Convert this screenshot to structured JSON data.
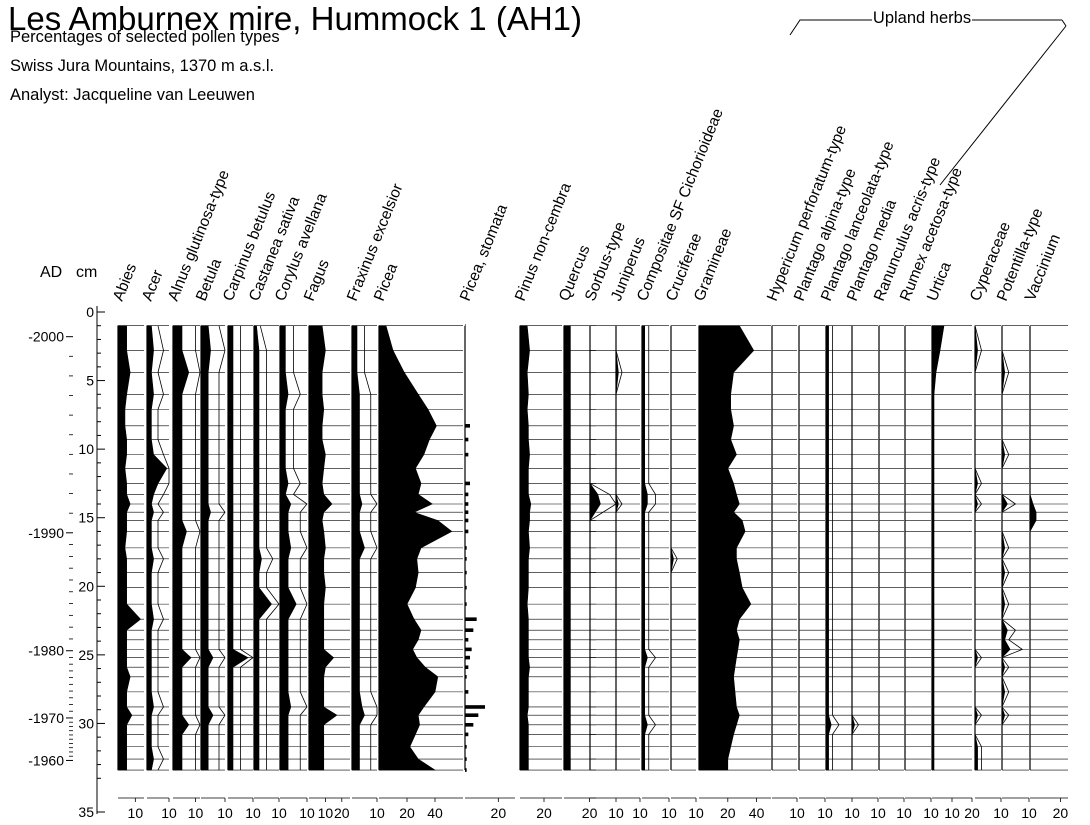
{
  "chart_data": {
    "type": "area",
    "title": "Les Amburnex mire, Hummock 1 (AH1)",
    "subtitle_lines": [
      "Percentages of selected pollen types",
      "Swiss Jura Mountains, 1370 m a.s.l.",
      "Analyst: Jacqueline van Leeuwen"
    ],
    "group_label": "Upland herbs",
    "axis_labels": {
      "age": "AD",
      "depth": "cm"
    },
    "depth_range": [
      0,
      35
    ],
    "depth_ticks": [
      {
        "depth": 0,
        "label": "0"
      },
      {
        "depth": 5,
        "label": "5"
      },
      {
        "depth": 10,
        "label": "10"
      },
      {
        "depth": 15,
        "label": "15"
      },
      {
        "depth": 20,
        "label": "20"
      },
      {
        "depth": 25,
        "label": "25"
      },
      {
        "depth": 30,
        "label": "30"
      },
      {
        "depth": 35,
        "label": "35"
      }
    ],
    "age_ticks": [
      {
        "depth": 1.8,
        "label": "-2000"
      },
      {
        "depth": 16.1,
        "label": "-1990"
      },
      {
        "depth": 24.7,
        "label": "-1980"
      },
      {
        "depth": 29.6,
        "label": "-1970"
      },
      {
        "depth": 32.7,
        "label": "-1960"
      }
    ],
    "depths": [
      1.0,
      2.8,
      4.4,
      6.0,
      7.1,
      8.3,
      9.3,
      10.4,
      11.4,
      12.5,
      13.3,
      14.0,
      14.6,
      15.2,
      16.0,
      17.2,
      18.0,
      19.0,
      20.1,
      21.3,
      22.4,
      23.2,
      23.9,
      24.6,
      25.2,
      25.9,
      26.6,
      27.7,
      28.8,
      29.4,
      30.1,
      30.8,
      31.7,
      32.6,
      33.4
    ],
    "series": [
      {
        "name": "Abies",
        "max": 15,
        "tick_labels": [
          "10"
        ],
        "values": [
          5,
          5,
          7,
          5,
          4,
          4,
          5,
          5,
          4,
          5,
          5,
          7,
          5,
          5,
          5,
          4,
          5,
          5,
          5,
          5,
          13,
          5,
          5,
          5,
          5,
          5,
          7,
          5,
          5,
          8,
          5,
          5,
          5,
          5,
          5
        ]
      },
      {
        "name": "Acer",
        "max": 10,
        "tick_labels": [
          "10"
        ],
        "values": [
          2,
          3,
          2,
          3,
          2,
          2,
          2,
          3,
          9,
          5,
          3,
          2,
          3,
          2,
          2,
          2,
          3,
          2,
          2,
          2,
          3,
          2,
          2,
          2,
          2,
          2,
          2,
          2,
          3,
          2,
          2,
          2,
          2,
          3,
          2
        ]
      },
      {
        "name": "Alnus glutinosa-type",
        "max": 12,
        "tick_labels": [
          "10"
        ],
        "values": [
          4,
          4,
          7,
          4,
          4,
          4,
          4,
          4,
          4,
          4,
          4,
          4,
          4,
          4,
          6,
          4,
          4,
          4,
          4,
          4,
          4,
          4,
          4,
          4,
          8,
          4,
          4,
          4,
          4,
          4,
          7,
          4,
          4,
          4,
          4
        ]
      },
      {
        "name": "Betula",
        "max": 10,
        "tick_labels": [
          "10"
        ],
        "values": [
          3,
          4,
          3,
          3,
          3,
          3,
          3,
          3,
          3,
          3,
          3,
          3,
          4,
          3,
          3,
          3,
          3,
          3,
          3,
          3,
          3,
          3,
          3,
          3,
          5,
          3,
          3,
          3,
          3,
          5,
          3,
          3,
          3,
          3,
          3
        ]
      },
      {
        "name": "Carpinus betulus",
        "max": 10,
        "tick_labels": [
          "10"
        ],
        "values": [
          2,
          2,
          2,
          2,
          2,
          2,
          2,
          2,
          2,
          2,
          2,
          2,
          2,
          2,
          2,
          2,
          2,
          2,
          2,
          2,
          2,
          2,
          2,
          2,
          8,
          2,
          2,
          2,
          2,
          2,
          2,
          2,
          2,
          2,
          2
        ]
      },
      {
        "name": "Castanea sativa",
        "max": 10,
        "tick_labels": [
          "10"
        ],
        "values": [
          1,
          2,
          2,
          2,
          2,
          2,
          2,
          2,
          2,
          2,
          2,
          2,
          2,
          2,
          2,
          2,
          3,
          2,
          2,
          7,
          2,
          2,
          2,
          2,
          2,
          2,
          2,
          2,
          2,
          2,
          2,
          2,
          2,
          2,
          2
        ]
      },
      {
        "name": "Corylus avellana",
        "max": 10,
        "tick_labels": [
          "10"
        ],
        "values": [
          2,
          2,
          2,
          3,
          2,
          2,
          2,
          2,
          2,
          3,
          2,
          4,
          3,
          3,
          3,
          4,
          3,
          3,
          3,
          6,
          3,
          3,
          3,
          3,
          3,
          3,
          3,
          3,
          4,
          3,
          3,
          3,
          3,
          3,
          3
        ]
      },
      {
        "name": "Fagus",
        "max": 25,
        "tick_labels": [
          "10",
          "20"
        ],
        "values": [
          8,
          10,
          8,
          8,
          9,
          8,
          8,
          10,
          9,
          8,
          9,
          14,
          9,
          8,
          9,
          10,
          9,
          9,
          10,
          9,
          9,
          9,
          9,
          9,
          15,
          10,
          9,
          9,
          9,
          17,
          9,
          9,
          9,
          9,
          9
        ]
      },
      {
        "name": "Fraxinus excelsior",
        "max": 10,
        "tick_labels": [
          "10"
        ],
        "values": [
          2,
          2,
          2,
          3,
          3,
          3,
          3,
          3,
          3,
          3,
          3,
          4,
          3,
          3,
          3,
          5,
          3,
          3,
          3,
          3,
          3,
          3,
          3,
          3,
          3,
          3,
          3,
          3,
          4,
          5,
          3,
          3,
          3,
          3,
          3
        ]
      },
      {
        "name": "Picea",
        "max": 60,
        "tick_labels": [
          "20",
          "40"
        ],
        "values": [
          5,
          10,
          18,
          28,
          35,
          41,
          36,
          32,
          26,
          30,
          28,
          38,
          25,
          42,
          52,
          30,
          27,
          28,
          26,
          20,
          25,
          30,
          28,
          24,
          27,
          33,
          42,
          40,
          32,
          28,
          29,
          26,
          22,
          28,
          40
        ]
      },
      {
        "name": "Picea, stomata",
        "max": 30,
        "tick_labels": [
          "20"
        ],
        "bars": true,
        "values": [
          0,
          0,
          0,
          0,
          0,
          3,
          2,
          2,
          0,
          3,
          2,
          2,
          2,
          2,
          2,
          1,
          1,
          1,
          1,
          1,
          7,
          5,
          2,
          4,
          3,
          2,
          1,
          2,
          12,
          8,
          5,
          2,
          1,
          1,
          1
        ]
      },
      {
        "name": "Pinus non-cembra",
        "max": 35,
        "tick_labels": [
          "20"
        ],
        "values": [
          6,
          8,
          6,
          7,
          6,
          7,
          7,
          8,
          7,
          7,
          7,
          9,
          8,
          8,
          7,
          8,
          7,
          7,
          7,
          6,
          7,
          7,
          7,
          7,
          7,
          8,
          7,
          7,
          7,
          6,
          7,
          7,
          7,
          7,
          7
        ]
      },
      {
        "name": "Quercus",
        "max": 25,
        "tick_labels": [
          "20"
        ],
        "values": [
          5,
          5,
          5,
          5,
          5,
          5,
          5,
          5,
          5,
          5,
          5,
          5,
          5,
          5,
          5,
          5,
          5,
          5,
          5,
          5,
          5,
          5,
          5,
          5,
          5,
          5,
          5,
          5,
          5,
          5,
          5,
          5,
          5,
          5,
          5
        ]
      },
      {
        "name": "Sorbus-type",
        "max": 10,
        "tick_labels": [
          "10"
        ],
        "values": [
          0,
          0,
          0,
          0,
          0,
          0,
          0,
          0,
          0,
          0,
          3,
          4,
          2,
          0,
          0,
          0,
          0,
          0,
          0,
          0,
          0,
          0,
          0,
          0,
          0,
          0,
          0,
          0,
          0,
          0,
          0,
          0,
          0,
          0,
          0
        ]
      },
      {
        "name": "Juniperus",
        "max": 10,
        "tick_labels": [
          "10"
        ],
        "values": [
          0,
          0,
          1,
          0,
          0,
          0,
          0,
          0,
          0,
          0,
          0,
          1,
          0,
          0,
          0,
          0,
          0,
          0,
          0,
          0,
          0,
          0,
          0,
          0,
          0,
          0,
          0,
          0,
          0,
          0,
          0,
          0,
          0,
          0,
          0
        ]
      },
      {
        "name": "Compositae SF Cichorioideae",
        "max": 10,
        "tick_labels": [
          "10"
        ],
        "values": [
          1,
          1,
          1,
          1,
          1,
          1,
          1,
          1,
          1,
          1,
          2,
          2,
          1,
          1,
          1,
          1,
          1,
          1,
          1,
          1,
          1,
          1,
          1,
          1,
          2,
          1,
          1,
          1,
          1,
          1,
          2,
          1,
          1,
          1,
          1
        ]
      },
      {
        "name": "Cruciferae",
        "max": 10,
        "tick_labels": [
          "10"
        ],
        "values": [
          0,
          0,
          0,
          0,
          0,
          0,
          0,
          0,
          0,
          0,
          0,
          0,
          0,
          0,
          0,
          0,
          1,
          0,
          0,
          0,
          0,
          0,
          0,
          0,
          0,
          0,
          0,
          0,
          0,
          0,
          0,
          0,
          0,
          0,
          0
        ]
      },
      {
        "name": "Gramineae",
        "max": 50,
        "tick_labels": [
          "20",
          "40"
        ],
        "values": [
          28,
          38,
          24,
          22,
          22,
          24,
          22,
          26,
          20,
          24,
          26,
          28,
          24,
          30,
          32,
          26,
          26,
          28,
          30,
          36,
          28,
          26,
          28,
          27,
          26,
          25,
          24,
          25,
          26,
          28,
          26,
          24,
          22,
          20,
          20
        ]
      },
      {
        "name": "Hypericum perforatum-type",
        "max": 10,
        "tick_labels": [
          "10"
        ],
        "values": [
          0,
          0,
          0,
          0,
          0,
          0,
          0,
          0,
          0,
          0,
          0,
          0,
          0,
          0,
          0,
          0,
          0,
          0,
          0,
          0,
          0,
          0,
          0,
          0,
          0,
          0,
          0,
          0,
          0,
          0,
          0,
          0,
          0,
          0,
          0
        ]
      },
      {
        "name": "Plantago alpina-type",
        "max": 10,
        "tick_labels": [
          "10"
        ],
        "values": [
          0,
          0,
          0,
          0,
          0,
          0,
          0,
          0,
          0,
          0,
          0,
          0,
          0,
          0,
          0,
          0,
          0,
          0,
          0,
          0,
          0,
          0,
          0,
          0,
          0,
          0,
          0,
          0,
          0,
          0,
          0,
          0,
          0,
          0,
          0
        ]
      },
      {
        "name": "Plantago lanceolata-type",
        "max": 10,
        "tick_labels": [
          "10"
        ],
        "values": [
          1,
          1,
          1,
          1,
          1,
          1,
          1,
          1,
          1,
          1,
          1,
          1,
          1,
          1,
          1,
          1,
          1,
          1,
          1,
          1,
          1,
          1,
          1,
          1,
          1,
          1,
          1,
          1,
          1,
          1,
          2,
          1,
          1,
          1,
          1
        ]
      },
      {
        "name": "Plantago media",
        "max": 10,
        "tick_labels": [
          "10"
        ],
        "values": [
          0,
          0,
          0,
          0,
          0,
          0,
          0,
          0,
          0,
          0,
          0,
          0,
          0,
          0,
          0,
          0,
          0,
          0,
          0,
          0,
          0,
          0,
          0,
          0,
          0,
          0,
          0,
          0,
          0,
          0,
          1,
          0,
          0,
          0,
          0
        ]
      },
      {
        "name": "Ranunculus acris-type",
        "max": 10,
        "tick_labels": [
          "10"
        ],
        "values": [
          0,
          0,
          0,
          0,
          0,
          0,
          0,
          0,
          0,
          0,
          0,
          0,
          0,
          0,
          0,
          0,
          0,
          0,
          0,
          0,
          0,
          0,
          0,
          0,
          0,
          0,
          0,
          0,
          0,
          0,
          0,
          0,
          0,
          0,
          0
        ]
      },
      {
        "name": "Rumex acetosa-type",
        "max": 10,
        "tick_labels": [
          "10"
        ],
        "values": [
          0,
          0,
          0,
          0,
          0,
          0,
          0,
          0,
          0,
          0,
          0,
          0,
          0,
          0,
          0,
          0,
          0,
          0,
          0,
          0,
          0,
          0,
          0,
          0,
          0,
          0,
          0,
          0,
          0,
          0,
          0,
          0,
          0,
          0,
          0
        ]
      },
      {
        "name": "Urtica",
        "max": 20,
        "tick_labels": [
          "10",
          "20"
        ],
        "values": [
          6,
          4,
          2,
          1,
          1,
          1,
          1,
          1,
          1,
          1,
          1,
          1,
          1,
          1,
          1,
          1,
          1,
          1,
          1,
          1,
          1,
          1,
          1,
          1,
          1,
          1,
          1,
          1,
          1,
          1,
          1,
          1,
          1,
          1,
          1
        ]
      },
      {
        "name": "Cyperaceae",
        "max": 10,
        "tick_labels": [
          "10"
        ],
        "values": [
          0,
          1,
          0,
          0,
          0,
          0,
          0,
          0,
          0,
          1,
          0,
          1,
          0,
          0,
          0,
          0,
          0,
          0,
          0,
          0,
          0,
          0,
          0,
          0,
          1,
          0,
          0,
          0,
          0,
          1,
          0,
          0,
          1,
          1,
          1
        ]
      },
      {
        "name": "Potentilla-type",
        "max": 10,
        "tick_labels": [
          "10"
        ],
        "values": [
          0,
          0,
          1,
          0,
          0,
          0,
          0,
          1,
          0,
          0,
          0,
          2,
          0,
          0,
          0,
          1,
          0,
          1,
          0,
          1,
          0,
          2,
          1,
          3,
          0,
          1,
          0,
          1,
          0,
          1,
          0,
          0,
          0,
          0,
          0
        ]
      },
      {
        "name": "Vaccinium",
        "max": 25,
        "tick_labels": [
          "20"
        ],
        "values": [
          0,
          0,
          0,
          0,
          0,
          0,
          0,
          0,
          0,
          0,
          0,
          2,
          4,
          4,
          0,
          0,
          0,
          0,
          0,
          0,
          0,
          0,
          0,
          0,
          0,
          0,
          0,
          0,
          0,
          0,
          0,
          0,
          0,
          0,
          0
        ]
      }
    ]
  }
}
